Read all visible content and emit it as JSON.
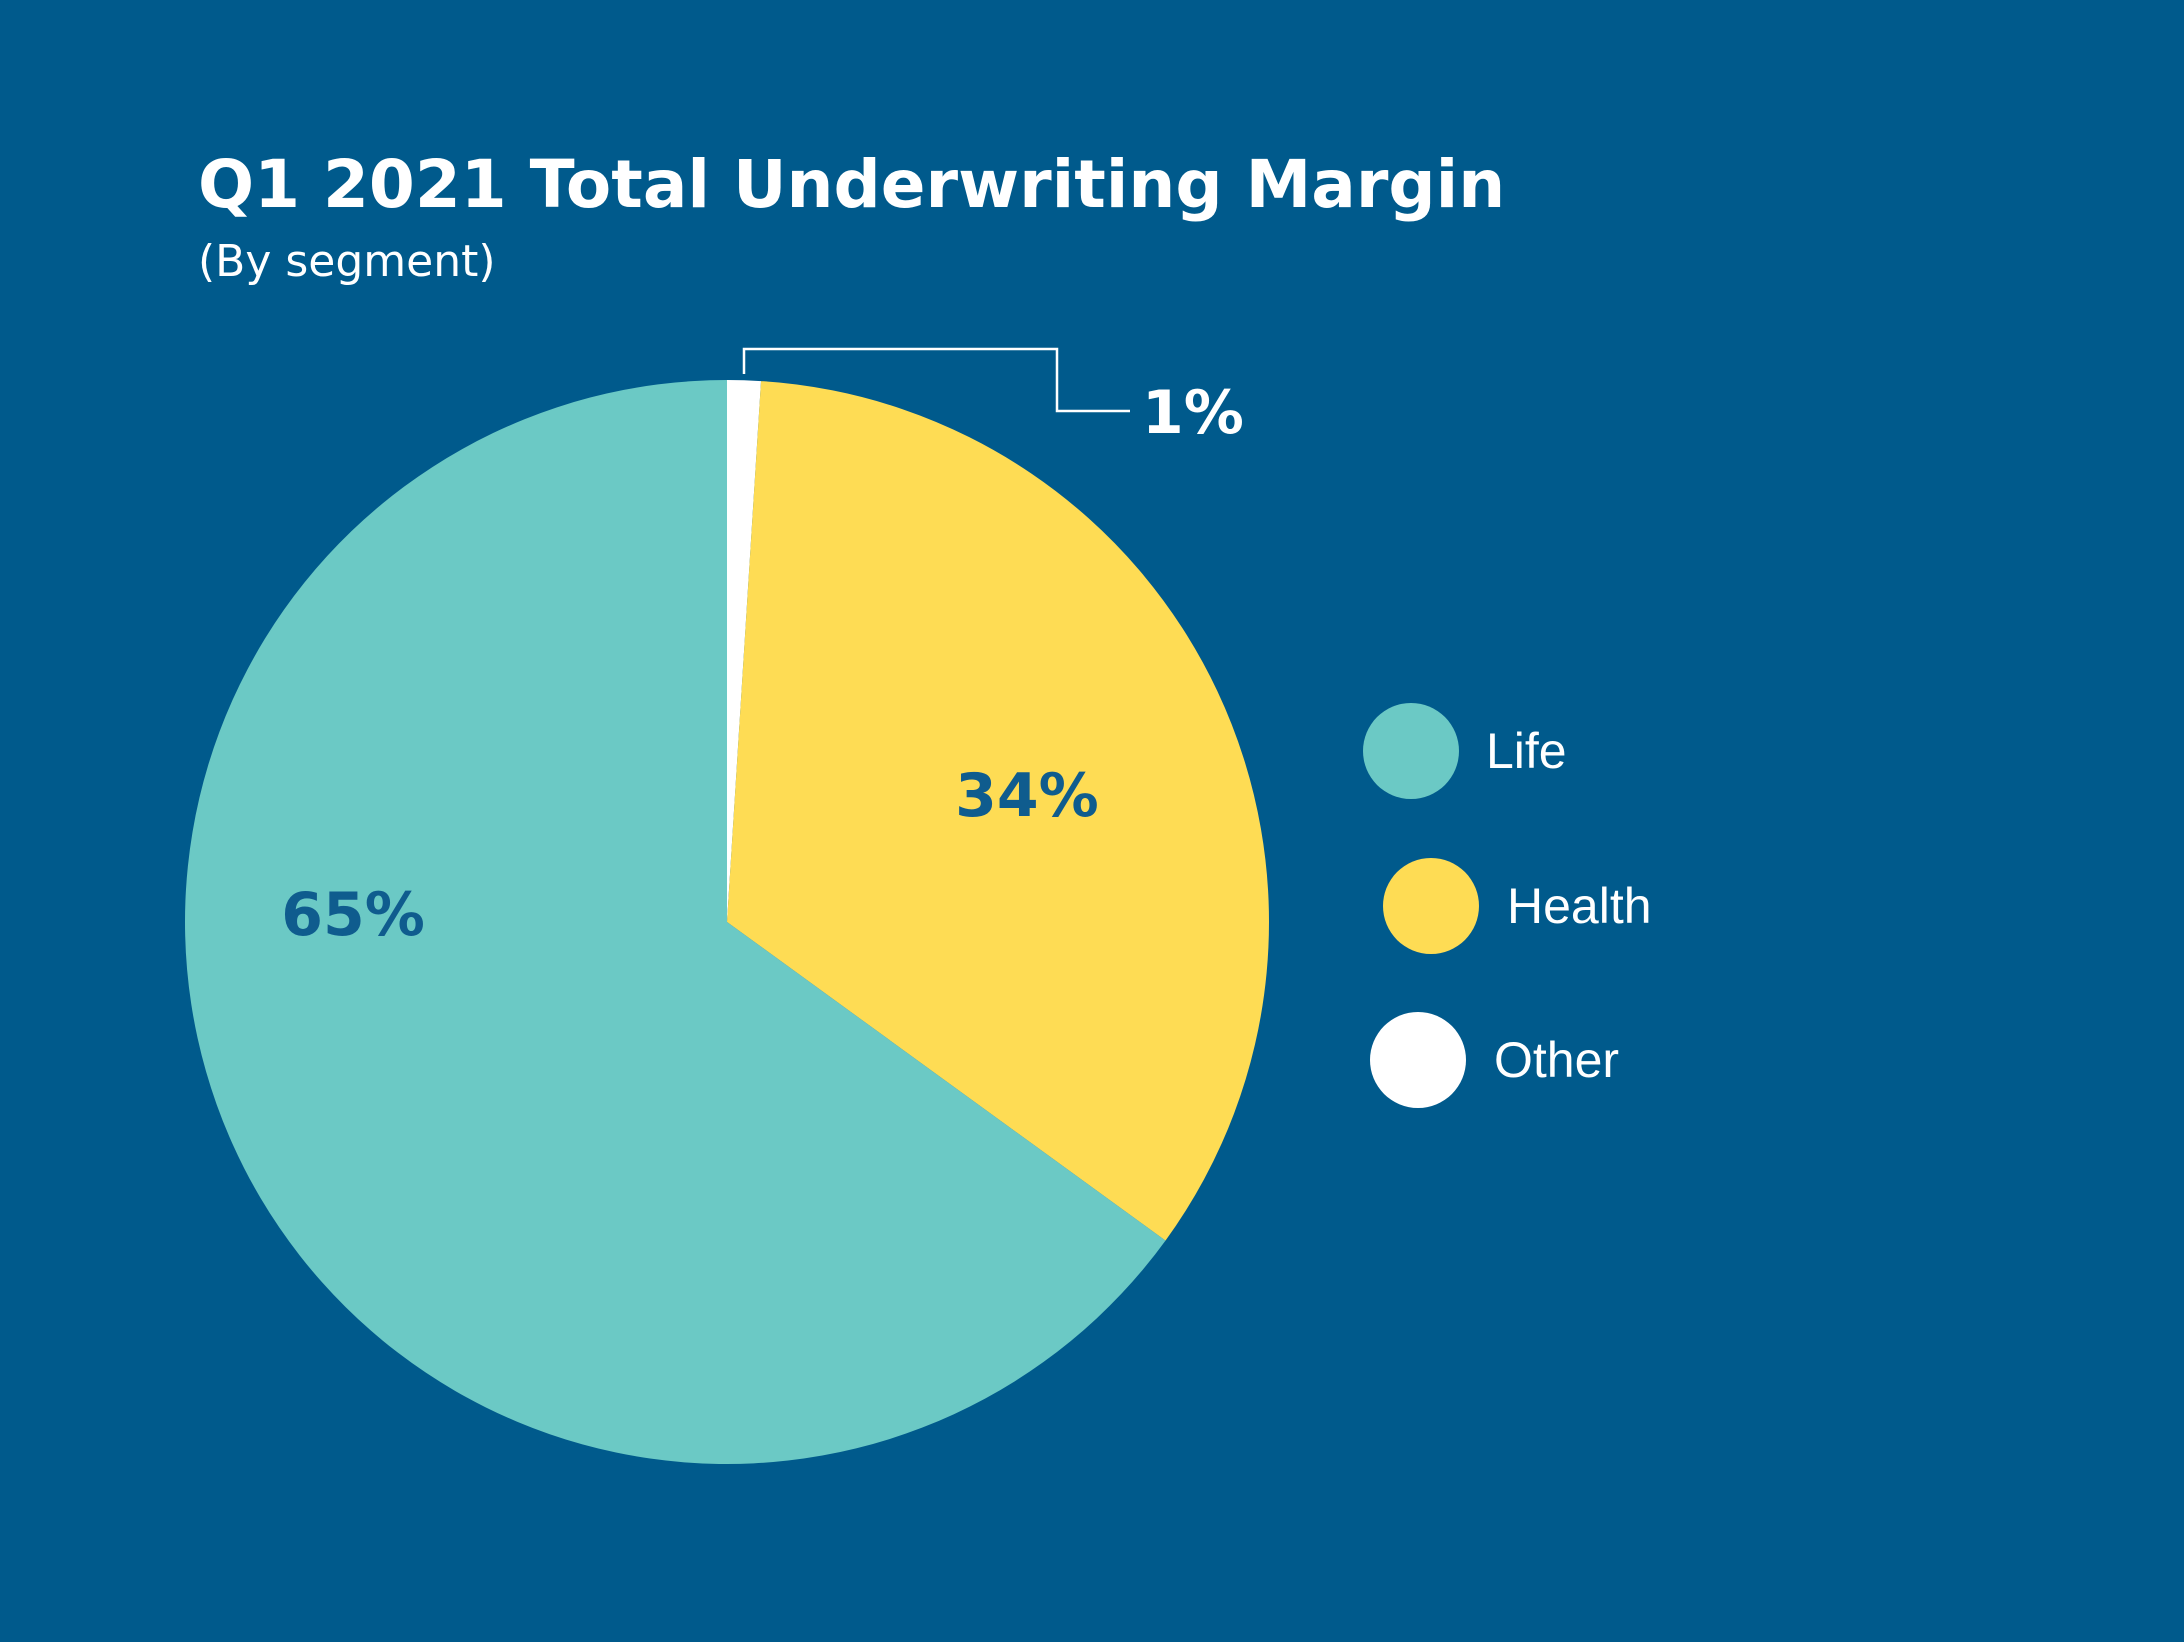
{
  "chart_data": {
    "type": "pie",
    "title": "Q1 2021 Total Underwriting Margin",
    "subtitle": "(By segment)",
    "slices": [
      {
        "name": "Life",
        "value": 65,
        "label": "65%",
        "color": "#6bc9c5"
      },
      {
        "name": "Health",
        "value": 34,
        "label": "34%",
        "color": "#fedc54"
      },
      {
        "name": "Other",
        "value": 1,
        "label": "1%",
        "color": "#ffffff"
      }
    ],
    "start": "12 o'clock",
    "direction": "clockwise, Other first",
    "legend": {
      "position": "right",
      "entries": [
        "Life",
        "Health",
        "Other"
      ]
    },
    "label_color": "#0f5c8e",
    "callout_color": "#ffffff",
    "background": "#005a8c"
  }
}
